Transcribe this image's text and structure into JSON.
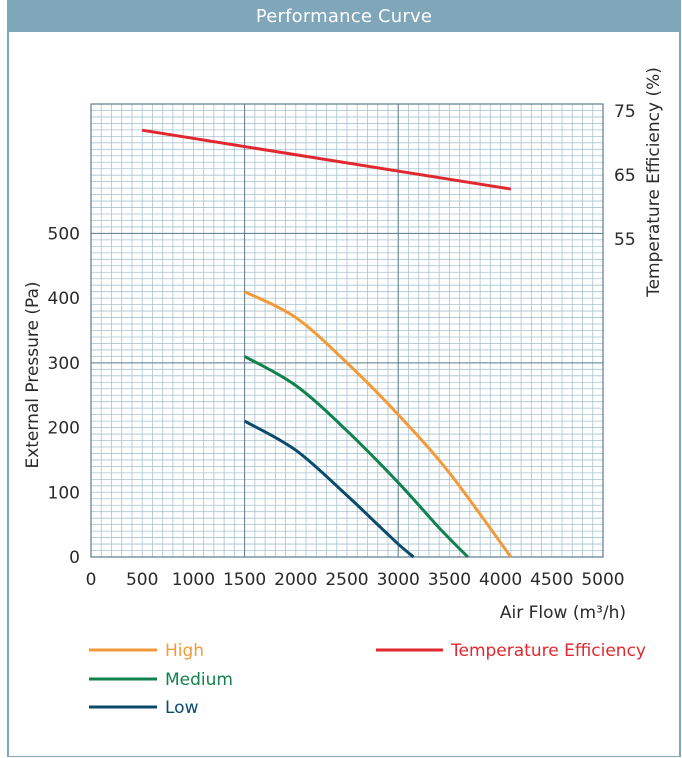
{
  "header": {
    "title": "Performance Curve"
  },
  "chart_data": {
    "type": "line",
    "title": "Performance Curve",
    "xlabel": "Air Flow (m³/h)",
    "ylabel": "External Pressure (Pa)",
    "y2label": "Temperature Efficiency (%)",
    "xlim": [
      0,
      5000
    ],
    "ylim": [
      0,
      700
    ],
    "y2lim": [
      55,
      75
    ],
    "x_ticks": [
      0,
      500,
      1000,
      1500,
      2000,
      2500,
      3000,
      3500,
      4000,
      4500,
      5000
    ],
    "y_ticks": [
      0,
      100,
      200,
      300,
      400,
      500
    ],
    "y2_ticks": [
      55,
      65,
      75
    ],
    "grid": true,
    "legend_position": "bottom",
    "series": [
      {
        "name": "High",
        "axis": "left",
        "color": "#f29a38",
        "x": [
          1500,
          2000,
          2500,
          3000,
          3500,
          4100
        ],
        "y": [
          410,
          370,
          300,
          220,
          130,
          0
        ]
      },
      {
        "name": "Medium",
        "axis": "left",
        "color": "#11824d",
        "x": [
          1500,
          2000,
          2500,
          3000,
          3400,
          3680
        ],
        "y": [
          310,
          265,
          195,
          115,
          45,
          0
        ]
      },
      {
        "name": "Low",
        "axis": "left",
        "color": "#0b4a6b",
        "x": [
          1500,
          2000,
          2500,
          2800,
          3000,
          3150
        ],
        "y": [
          210,
          165,
          95,
          50,
          20,
          0
        ]
      },
      {
        "name": "Temperature Efficiency",
        "axis": "right",
        "color": "#e0282e",
        "x": [
          500,
          4100
        ],
        "y": [
          72,
          62.8
        ]
      }
    ]
  }
}
